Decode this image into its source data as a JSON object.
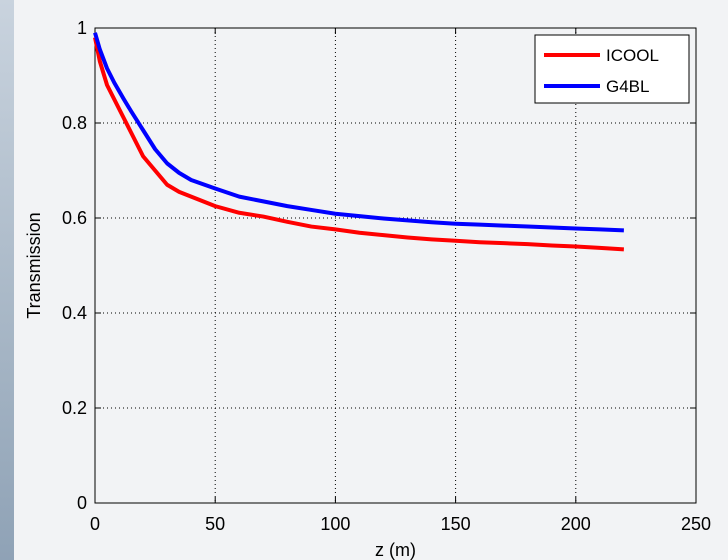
{
  "chart_data": {
    "type": "line",
    "title": "",
    "xlabel": "z (m)",
    "ylabel": "Transmission",
    "xlim": [
      0,
      250
    ],
    "ylim": [
      0,
      1
    ],
    "xticks": [
      "0",
      "50",
      "100",
      "150",
      "200",
      "250"
    ],
    "yticks": [
      "0",
      "0.2",
      "0.4",
      "0.6",
      "0.8",
      "1"
    ],
    "grid": true,
    "legend_position": "top-right",
    "series": [
      {
        "name": "ICOOL",
        "color": "#ff0000",
        "x": [
          0,
          2,
          5,
          8,
          12,
          15,
          20,
          25,
          30,
          35,
          40,
          50,
          60,
          70,
          80,
          90,
          100,
          110,
          120,
          130,
          140,
          150,
          160,
          170,
          180,
          190,
          200,
          210,
          220
        ],
        "y": [
          0.98,
          0.93,
          0.88,
          0.85,
          0.81,
          0.78,
          0.73,
          0.7,
          0.67,
          0.655,
          0.645,
          0.625,
          0.611,
          0.603,
          0.592,
          0.582,
          0.576,
          0.569,
          0.564,
          0.559,
          0.555,
          0.552,
          0.549,
          0.547,
          0.545,
          0.542,
          0.54,
          0.537,
          0.534
        ]
      },
      {
        "name": "G4BL",
        "color": "#0000ff",
        "x": [
          0,
          2,
          5,
          8,
          12,
          15,
          20,
          25,
          30,
          35,
          40,
          50,
          60,
          70,
          80,
          90,
          100,
          110,
          120,
          130,
          140,
          150,
          160,
          170,
          180,
          190,
          200,
          210,
          220
        ],
        "y": [
          0.99,
          0.955,
          0.915,
          0.885,
          0.85,
          0.825,
          0.785,
          0.745,
          0.715,
          0.695,
          0.68,
          0.662,
          0.645,
          0.635,
          0.625,
          0.617,
          0.609,
          0.604,
          0.599,
          0.595,
          0.591,
          0.588,
          0.586,
          0.584,
          0.582,
          0.58,
          0.578,
          0.576,
          0.574
        ]
      }
    ]
  }
}
